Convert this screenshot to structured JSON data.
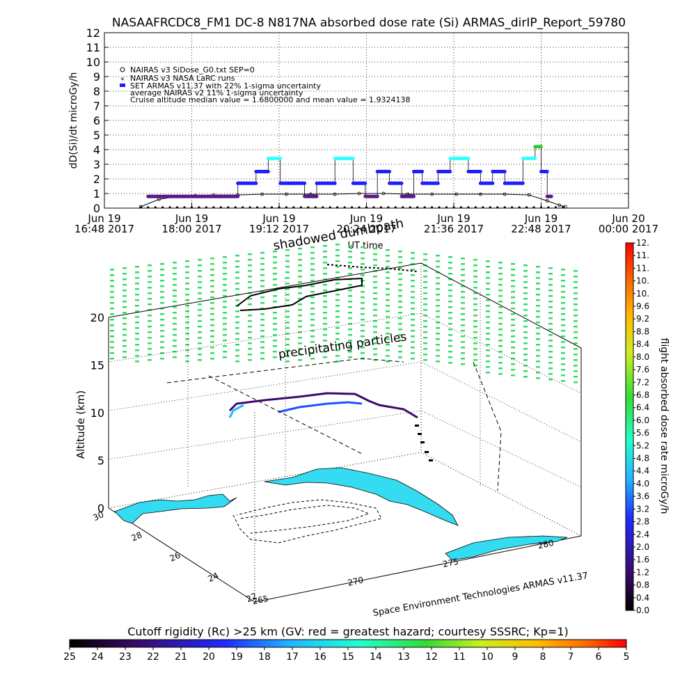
{
  "header": {
    "title": "NASAAFRCDC8_FM1 DC-8   N817NA absorbed dose rate (Si) ARMAS_dirIP_Report_59780"
  },
  "colors": {
    "nairas_v3": "#000000",
    "set_armas_blue": "#1e1eff",
    "set_armas_cyan": "#33ffff",
    "set_armas_green": "#33cc33",
    "terrain": "#33dcf0",
    "precip_dots": "#33dd66",
    "track": "#000000"
  },
  "chart_data": [
    {
      "type": "line",
      "title": "NASAAFRCDC8_FM1 DC-8   N817NA absorbed dose rate (Si) ARMAS_dirIP_Report_59780",
      "ylabel": "dD(Si)/dt microGy/h",
      "xlabel": "UT time",
      "ylim": [
        0,
        12
      ],
      "yticks": [
        "0",
        "1",
        "2",
        "3",
        "4",
        "5",
        "6",
        "7",
        "8",
        "9",
        "10",
        "11",
        "12"
      ],
      "xlim_minutes": [
        0,
        432
      ],
      "x_ticks": [
        {
          "date": "Jun 19",
          "time": "16:48 2017"
        },
        {
          "date": "Jun 19",
          "time": "18:00 2017"
        },
        {
          "date": "Jun 19",
          "time": "19:12 2017"
        },
        {
          "date": "Jun 19",
          "time": "20:24 2017"
        },
        {
          "date": "Jun 19",
          "time": "21:36 2017"
        },
        {
          "date": "Jun 19",
          "time": "22:48 2017"
        },
        {
          "date": "Jun 20",
          "time": "00:00 2017"
        }
      ],
      "legend": [
        "NAIRAS v3 SiDose_G0.txt SEP=0",
        "NAIRAS v3 NASA LaRC runs",
        "SET ARMAS v11.37 with 22% 1-sigma uncertainty",
        "average NAIRAS v2 11% 1-sigma uncertainty",
        "Cruise altitude median value = 1.6800000 and mean value = 1.9324138"
      ],
      "legend_placement": "top-left",
      "annotations": [
        "shadowed dumbpath"
      ],
      "series": [
        {
          "name": "NAIRAS v3 NASA LaRC runs",
          "x": [
            30,
            45,
            60,
            75,
            90,
            110,
            130,
            150,
            170,
            190,
            210,
            230,
            250,
            270,
            290,
            310,
            330,
            350,
            365,
            375,
            380
          ],
          "values": [
            0.1,
            0.6,
            0.8,
            0.85,
            0.9,
            0.9,
            0.95,
            0.95,
            0.95,
            0.95,
            1.0,
            1.0,
            0.95,
            0.95,
            0.95,
            0.95,
            0.95,
            0.9,
            0.5,
            0.2,
            0.1
          ]
        },
        {
          "name": "SET ARMAS v11.37 with 22% 1-sigma uncertainty",
          "x": [
            36,
            45,
            55,
            65,
            80,
            95,
            110,
            125,
            135,
            145,
            155,
            165,
            175,
            190,
            205,
            215,
            225,
            235,
            245,
            255,
            262,
            275,
            285,
            300,
            310,
            320,
            330,
            345,
            350,
            355,
            360,
            365
          ],
          "values": [
            0.8,
            0.8,
            0.8,
            0.8,
            0.8,
            0.8,
            1.7,
            2.5,
            3.4,
            1.7,
            1.7,
            0.8,
            1.7,
            3.4,
            1.7,
            0.8,
            2.5,
            1.7,
            0.8,
            2.5,
            1.7,
            2.5,
            3.4,
            2.5,
            1.7,
            2.5,
            1.7,
            3.4,
            3.4,
            4.2,
            2.5,
            0.8
          ]
        }
      ]
    },
    {
      "type": "scatter",
      "zlabel": "Altitude (km)",
      "zlim": [
        0,
        20
      ],
      "zticks": [
        "0",
        "5",
        "10",
        "15",
        "20"
      ],
      "lat_ticks": [
        "30",
        "28",
        "26",
        "24",
        "22"
      ],
      "lon_ticks": [
        "265",
        "270",
        "275",
        "280"
      ],
      "annotations": [
        "precipitating particles"
      ],
      "credit": "Space Environment Technologies ARMAS v11.37",
      "dose_colorbar": {
        "label": "flight absorbed dose rate microGy/h",
        "ticks": [
          "0.0",
          "0.4",
          "0.8",
          "1.2",
          "1.6",
          "2.0",
          "2.4",
          "2.8",
          "3.2",
          "3.6",
          "4.0",
          "4.4",
          "4.8",
          "5.2",
          "5.6",
          "6.0",
          "6.4",
          "6.8",
          "7.2",
          "7.6",
          "8.0",
          "8.4",
          "8.8",
          "9.2",
          "9.6",
          "10.",
          "10.",
          "11.",
          "11.",
          "12."
        ]
      },
      "rigidity_colorbar": {
        "label": "Cutoff rigidity (Rc) >25 km (GV: red = greatest hazard; courtesy SSSRC; Kp=1)",
        "ticks": [
          "25",
          "24",
          "23",
          "22",
          "21",
          "20",
          "19",
          "18",
          "17",
          "16",
          "15",
          "14",
          "13",
          "12",
          "11",
          "10",
          "9",
          "8",
          "7",
          "6",
          "5"
        ]
      }
    }
  ]
}
